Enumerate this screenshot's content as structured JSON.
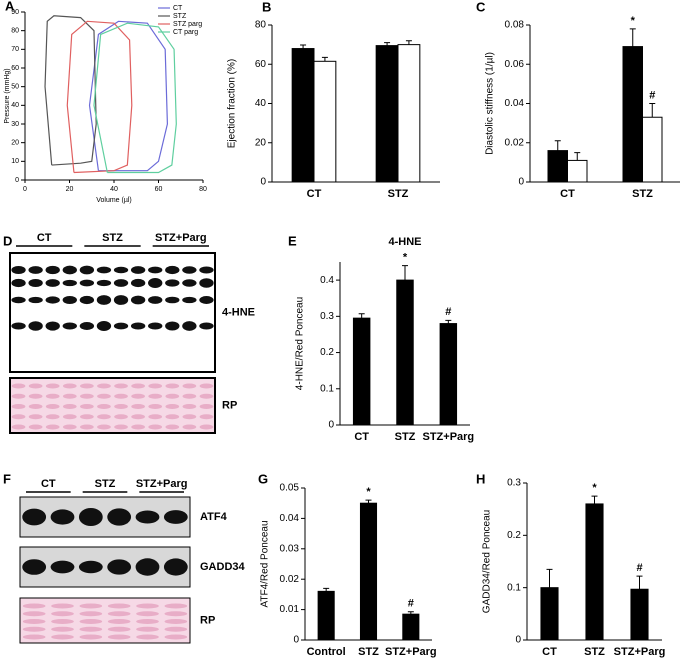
{
  "chart_data": [
    {
      "panel": "A",
      "type": "line",
      "xlabel": "Volume (µl)",
      "ylabel": "Pressure (mmHg)",
      "xlim": [
        0,
        80
      ],
      "xticks": [
        0,
        20,
        40,
        60,
        80
      ],
      "ylim": [
        0,
        90
      ],
      "yticks": [
        0,
        10,
        20,
        30,
        40,
        50,
        60,
        70,
        80,
        90
      ],
      "legend": "upper right",
      "series": [
        {
          "name": "CT",
          "color": "#6b6bd8",
          "x": [
            33,
            29,
            33,
            42,
            55,
            63,
            64,
            60,
            55,
            33
          ],
          "values": [
            5,
            40,
            78,
            85,
            84,
            70,
            30,
            10,
            5,
            5
          ]
        },
        {
          "name": "STZ",
          "color": "#555555",
          "x": [
            12,
            9,
            10,
            13,
            25,
            31,
            32,
            30,
            25,
            12
          ],
          "values": [
            8,
            50,
            85,
            88,
            87,
            80,
            30,
            10,
            9,
            8
          ]
        },
        {
          "name": "STZ parg",
          "color": "#e06060",
          "x": [
            22,
            19,
            21,
            28,
            40,
            47,
            48,
            46,
            40,
            22
          ],
          "values": [
            4,
            40,
            78,
            85,
            84,
            75,
            40,
            8,
            5,
            4
          ]
        },
        {
          "name": "CT parg",
          "color": "#5fcf9f",
          "x": [
            37,
            31,
            34,
            46,
            60,
            67,
            68,
            66,
            60,
            37
          ],
          "values": [
            4,
            40,
            78,
            84,
            82,
            70,
            30,
            8,
            4,
            4
          ]
        }
      ]
    },
    {
      "panel": "B",
      "type": "bar",
      "ylabel": "Ejection fraction (%)",
      "categories": [
        "CT",
        "STZ"
      ],
      "ylim": [
        0,
        80
      ],
      "yticks": [
        0,
        20,
        40,
        60,
        80
      ],
      "series": [
        {
          "color": "#000000",
          "values": [
            68,
            69.5
          ],
          "errors": [
            1.8,
            1.5
          ]
        },
        {
          "color": "#ffffff",
          "values": [
            61.5,
            70
          ],
          "errors": [
            2,
            2
          ]
        }
      ]
    },
    {
      "panel": "C",
      "type": "bar",
      "ylabel": "Diastolic stiffness (1/µl)",
      "categories": [
        "CT",
        "STZ"
      ],
      "ylim": [
        0,
        0.08
      ],
      "yticks": [
        0,
        0.02,
        0.04,
        0.06,
        0.08
      ],
      "series": [
        {
          "color": "#000000",
          "values": [
            0.016,
            0.069
          ],
          "errors": [
            0.005,
            0.009
          ],
          "annotations": [
            null,
            "*"
          ]
        },
        {
          "color": "#ffffff",
          "values": [
            0.011,
            0.033
          ],
          "errors": [
            0.004,
            0.007
          ],
          "annotations": [
            null,
            "#"
          ]
        }
      ]
    },
    {
      "panel": "E",
      "type": "bar",
      "title": "4-HNE",
      "ylabel": "4-HNE/Red Ponceau",
      "categories": [
        "CT",
        "STZ",
        "STZ+Parg"
      ],
      "ylim": [
        0,
        0.45
      ],
      "yticks": [
        0,
        0.1,
        0.2,
        0.3,
        0.4
      ],
      "series": [
        {
          "color": "#000000",
          "values": [
            0.295,
            0.4,
            0.28
          ],
          "errors": [
            0.012,
            0.04,
            0.009
          ],
          "annotations": [
            null,
            "*",
            "#"
          ]
        }
      ]
    },
    {
      "panel": "G",
      "type": "bar",
      "ylabel": "ATF4/Red Ponceau",
      "categories": [
        "Control",
        "STZ",
        "STZ+Parg"
      ],
      "ylim": [
        0,
        0.05
      ],
      "yticks": [
        0,
        0.01,
        0.02,
        0.03,
        0.04,
        0.05
      ],
      "series": [
        {
          "color": "#000000",
          "values": [
            0.016,
            0.045,
            0.0085
          ],
          "errors": [
            0.001,
            0.001,
            0.0008
          ],
          "annotations": [
            null,
            "*",
            "#"
          ]
        }
      ]
    },
    {
      "panel": "H",
      "type": "bar",
      "ylabel": "GADD34/Red Ponceau",
      "categories": [
        "CT",
        "STZ",
        "STZ+Parg"
      ],
      "ylim": [
        0,
        0.3
      ],
      "yticks": [
        0,
        0.1,
        0.2,
        0.3
      ],
      "series": [
        {
          "color": "#000000",
          "values": [
            0.1,
            0.26,
            0.097
          ],
          "errors": [
            0.035,
            0.015,
            0.025
          ],
          "annotations": [
            null,
            "*",
            "#"
          ]
        }
      ]
    }
  ],
  "blots": [
    {
      "panel": "D",
      "groups": [
        "CT",
        "STZ",
        "STZ+Parg"
      ],
      "bands": [
        "4-HNE",
        "RP"
      ]
    },
    {
      "panel": "F",
      "groups": [
        "CT",
        "STZ",
        "STZ+Parg"
      ],
      "bands": [
        "ATF4",
        "GADD34",
        "RP"
      ]
    }
  ]
}
